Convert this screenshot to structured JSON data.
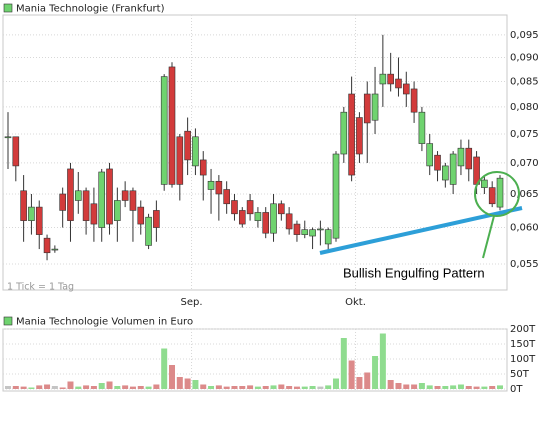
{
  "chart_data": [
    {
      "type": "candlestick",
      "title": "Mania Technologie (Frankfurt)",
      "categories": [
        null,
        null,
        null,
        null,
        null,
        null,
        null,
        null,
        null,
        null,
        null,
        null,
        null,
        null,
        null,
        null,
        null,
        null,
        null,
        null,
        null,
        null,
        null,
        null,
        "Sep.",
        null,
        null,
        null,
        null,
        null,
        null,
        null,
        null,
        null,
        null,
        null,
        null,
        null,
        null,
        null,
        null,
        null,
        null,
        null,
        null,
        "Okt.",
        null,
        null,
        null,
        null,
        null,
        null,
        null,
        null,
        null,
        null,
        null,
        null,
        null,
        null,
        null,
        null,
        null,
        null
      ],
      "open": [
        0.0745,
        0.0745,
        0.0655,
        0.061,
        0.063,
        0.0585,
        0.057,
        0.065,
        0.069,
        0.064,
        0.0655,
        0.0635,
        0.06,
        0.069,
        0.061,
        0.0655,
        0.0655,
        0.063,
        0.0575,
        0.0625,
        0.0665,
        0.088,
        0.0745,
        0.0755,
        0.0695,
        0.0705,
        0.0657,
        0.067,
        0.0657,
        0.064,
        0.0625,
        0.064,
        0.061,
        0.0622,
        0.0592,
        0.0635,
        0.062,
        0.0605,
        0.059,
        0.0588,
        0.0598,
        0.0577,
        0.0585,
        0.0715,
        0.0825,
        0.078,
        0.0825,
        0.0775,
        0.0845,
        0.0865,
        0.0855,
        0.0845,
        0.0835,
        0.0733,
        0.0695,
        0.0713,
        0.0672,
        0.0665,
        0.0695,
        0.0725,
        0.071,
        0.066,
        0.066,
        0.063
      ],
      "high": [
        0.079,
        0.0745,
        0.068,
        0.065,
        0.064,
        0.059,
        0.0575,
        0.066,
        0.07,
        0.0685,
        0.066,
        0.066,
        0.069,
        0.07,
        0.066,
        0.067,
        0.066,
        0.064,
        0.062,
        0.064,
        0.0865,
        0.089,
        0.075,
        0.078,
        0.076,
        0.072,
        0.069,
        0.068,
        0.067,
        0.065,
        0.063,
        0.065,
        0.063,
        0.063,
        0.065,
        0.064,
        0.063,
        0.061,
        0.061,
        0.06,
        0.061,
        0.06,
        0.072,
        0.08,
        0.086,
        0.079,
        0.085,
        0.088,
        0.095,
        0.091,
        0.09,
        0.087,
        0.085,
        0.08,
        0.075,
        0.072,
        0.07,
        0.072,
        0.074,
        0.074,
        0.072,
        0.068,
        0.067,
        0.068
      ],
      "low": [
        0.069,
        0.067,
        0.058,
        0.059,
        0.057,
        0.0555,
        0.0565,
        0.06,
        0.058,
        0.062,
        0.059,
        0.058,
        0.058,
        0.059,
        0.058,
        0.063,
        0.058,
        0.059,
        0.057,
        0.058,
        0.0655,
        0.066,
        0.064,
        0.068,
        0.068,
        0.064,
        0.062,
        0.061,
        0.062,
        0.061,
        0.06,
        0.061,
        0.06,
        0.0585,
        0.058,
        0.061,
        0.059,
        0.058,
        0.0585,
        0.057,
        0.0575,
        0.0565,
        0.058,
        0.07,
        0.067,
        0.07,
        0.07,
        0.075,
        0.08,
        0.083,
        0.082,
        0.08,
        0.077,
        0.072,
        0.068,
        0.067,
        0.066,
        0.065,
        0.068,
        0.067,
        0.065,
        0.065,
        0.063,
        0.0625
      ],
      "close": [
        0.0745,
        0.0695,
        0.061,
        0.063,
        0.059,
        0.0565,
        0.057,
        0.0625,
        0.061,
        0.0655,
        0.061,
        0.0605,
        0.0685,
        0.0605,
        0.064,
        0.064,
        0.0625,
        0.0605,
        0.0615,
        0.06,
        0.086,
        0.0665,
        0.0665,
        0.0705,
        0.0745,
        0.068,
        0.067,
        0.065,
        0.0635,
        0.062,
        0.0605,
        0.062,
        0.0622,
        0.0592,
        0.0635,
        0.062,
        0.0598,
        0.059,
        0.0597,
        0.0597,
        0.0598,
        0.0597,
        0.0715,
        0.079,
        0.068,
        0.0715,
        0.077,
        0.0825,
        0.0865,
        0.0845,
        0.0837,
        0.0825,
        0.079,
        0.079,
        0.0733,
        0.0688,
        0.0695,
        0.0715,
        0.0725,
        0.069,
        0.0665,
        0.0672,
        0.0635,
        0.0675
      ],
      "ylim": [
        0.0517,
        0.0996
      ],
      "log_scale": true,
      "grid": true,
      "yticks": [
        {
          "value": 0.055,
          "label": "0,055"
        },
        {
          "value": 0.06,
          "label": "0,060"
        },
        {
          "value": 0.065,
          "label": "0,065"
        },
        {
          "value": 0.07,
          "label": "0,070"
        },
        {
          "value": 0.075,
          "label": "0,075"
        },
        {
          "value": 0.08,
          "label": "0,080"
        },
        {
          "value": 0.085,
          "label": "0,085"
        },
        {
          "value": 0.09,
          "label": "0,090"
        },
        {
          "value": 0.095,
          "label": "0,095"
        }
      ],
      "up_color": "#6fd36f",
      "down_color": "#d23b3b",
      "note": "1 Tick = 1 Tag",
      "annotation": "Bullish Engulfing Pattern"
    },
    {
      "type": "bar",
      "title": "Mania Technologie Volumen in Euro",
      "values": [
        10000,
        10000,
        8000,
        5000,
        12000,
        15000,
        10000,
        5000,
        25000,
        8000,
        12000,
        10000,
        20000,
        25000,
        10000,
        12000,
        8000,
        10000,
        8000,
        15000,
        135000,
        80000,
        40000,
        35000,
        30000,
        15000,
        10000,
        12000,
        8000,
        10000,
        10000,
        12000,
        8000,
        10000,
        12000,
        15000,
        10000,
        8000,
        8000,
        10000,
        8000,
        12000,
        35000,
        170000,
        95000,
        40000,
        55000,
        110000,
        185000,
        30000,
        20000,
        15000,
        15000,
        20000,
        12000,
        10000,
        10000,
        12000,
        15000,
        10000,
        8000,
        8000,
        10000,
        12000
      ],
      "ylim": [
        0,
        200000
      ],
      "yticks": [
        {
          "value": 0,
          "label": "0T"
        },
        {
          "value": 50000,
          "label": "50T"
        },
        {
          "value": 100000,
          "label": "100T"
        },
        {
          "value": 150000,
          "label": "150T"
        },
        {
          "value": 200000,
          "label": "200T"
        }
      ],
      "grid": true,
      "up_color": "#8fdc8f",
      "down_color": "#dc8a8a",
      "flat_color": "#c4c4c4"
    }
  ]
}
